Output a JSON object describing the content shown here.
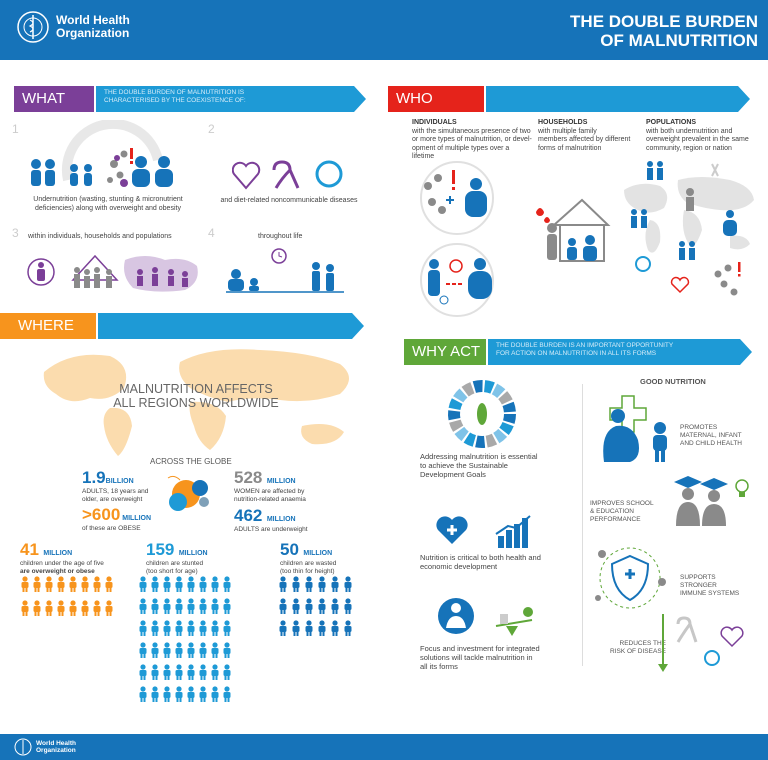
{
  "header": {
    "org_line1": "World Health",
    "org_line2": "Organization",
    "title_line1": "THE DOUBLE BURDEN",
    "title_line2": "OF MALNUTRITION"
  },
  "what": {
    "label": "WHAT",
    "desc_line1": "THE DOUBLE BURDEN OF MALNUTRITION IS",
    "desc_line2": "CHARACTERISED BY THE COEXISTENCE OF:",
    "items": [
      {
        "num": "1",
        "text1": "Undernutrition (wasting, stunting & micronutrient",
        "text2": "deficiencies) along with overweight and obesity"
      },
      {
        "num": "2",
        "text1": "and diet-related noncommunicable diseases",
        "text2": ""
      },
      {
        "num": "3",
        "text1": "within individuals, households and populations",
        "text2": ""
      },
      {
        "num": "4",
        "text1": "throughout life",
        "text2": ""
      }
    ]
  },
  "who": {
    "label": "WHO",
    "cols": [
      {
        "title": "INDIVIDUALS",
        "l1": "with the simultaneous presence of two",
        "l2": "or more types of malnutrition, or devel-",
        "l3": "opment of multiple types over a lifetime"
      },
      {
        "title": "HOUSEHOLDS",
        "l1": "with multiple family",
        "l2": "members affected by different",
        "l3": "forms of malnutrition"
      },
      {
        "title": "POPULATIONS",
        "l1": "with both undernutrition and",
        "l2": "overweight prevalent in the same",
        "l3": "community, region or nation"
      }
    ]
  },
  "where": {
    "label": "WHERE",
    "map_title1": "MALNUTRITION AFFECTS",
    "map_title2": "ALL REGIONS WORLDWIDE",
    "across": "ACROSS THE GLOBE",
    "s1_num": "1.9",
    "s1_unit": "BILLION",
    "s1_l1": "ADULTS, 18 years and",
    "s1_l2": "older, are overweight",
    "s2_num": ">600",
    "s2_unit": "MILLION",
    "s2_l1": "of these are OBESE",
    "s3_num": "528",
    "s3_unit": "MILLION",
    "s3_l1": "WOMEN are affected by",
    "s3_l2": "nutrition-related anaemia",
    "s4_num": "462",
    "s4_unit": "MILLION",
    "s4_l1": "ADULTS are underweight",
    "c1_num": "41",
    "c1_unit": "MILLION",
    "c1_l1": "children under the age of five",
    "c1_l2": "are overweight or obese",
    "c2_num": "159",
    "c2_unit": "MILLION",
    "c2_l1": "children are stunted",
    "c2_l2": "(too short for age)",
    "c3_num": "50",
    "c3_unit": "MILLION",
    "c3_l1": "children are wasted",
    "c3_l2": "(too thin for height)"
  },
  "why": {
    "label": "WHY ACT",
    "desc_line1": "THE DOUBLE BURDEN IS AN IMPORTANT OPPORTUNITY",
    "desc_line2": "FOR ACTION ON MALNUTRITION IN ALL ITS FORMS",
    "p1_l1": "Addressing malnutrition is essential",
    "p1_l2": "to achieve the Sustainable",
    "p1_l3": "Development Goals",
    "p2_l1": "Nutrition is critical to both health and",
    "p2_l2": "economic development",
    "p3_l1": "Focus and investment for integrated",
    "p3_l2": "solutions will tackle malnutrition in",
    "p3_l3": "all its forms",
    "good": "GOOD NUTRITION",
    "g1_l1": "PROMOTES",
    "g1_l2": "MATERNAL, INFANT",
    "g1_l3": "AND CHILD HEALTH",
    "g2_l1": "IMPROVES SCHOOL",
    "g2_l2": "& EDUCATION",
    "g2_l3": "PERFORMANCE",
    "g3_l1": "SUPPORTS",
    "g3_l2": "STRONGER",
    "g3_l3": "IMMUNE SYSTEMS",
    "g4_l1": "REDUCES THE",
    "g4_l2": "RISK OF DISEASE"
  },
  "colors": {
    "blue": "#1673b9",
    "light_blue": "#1e9ad6",
    "purple": "#7b3f98",
    "red": "#e5231b",
    "orange": "#f7941d",
    "green": "#5fa739"
  },
  "icons": [
    "who-emblem-icon",
    "family-icon",
    "heart-icon",
    "ribbon-icon",
    "circle-icon",
    "person-icon",
    "child-icon",
    "world-map",
    "house-icon",
    "blood-drop-icon",
    "medical-cross-icon",
    "graduation-cap-icon",
    "lightbulb-icon",
    "shield-icon"
  ]
}
